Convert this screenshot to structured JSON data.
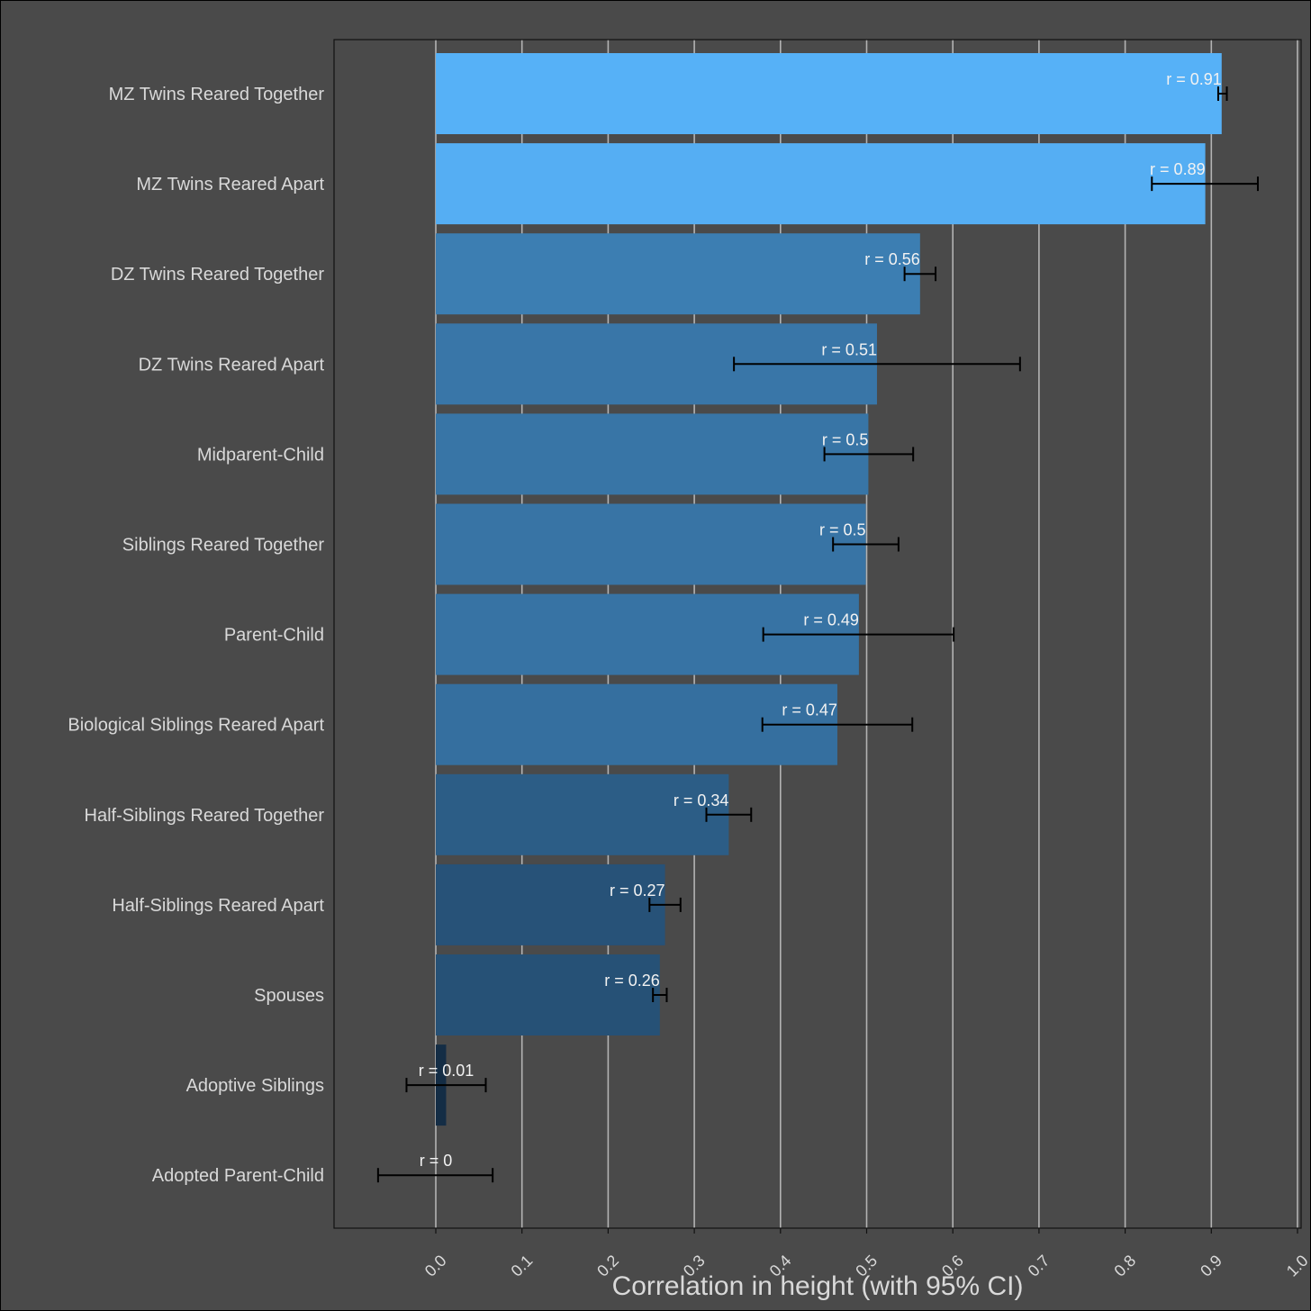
{
  "chart_data": {
    "type": "bar",
    "orientation": "horizontal",
    "title": "",
    "xlabel": "Correlation in height (with 95% CI)",
    "ylabel": "",
    "xlim": [
      -0.117,
      1.0
    ],
    "x_ticks": [
      0.0,
      0.1,
      0.2,
      0.3,
      0.4,
      0.5,
      0.6,
      0.7,
      0.8,
      0.9,
      1.0
    ],
    "x_tick_labels": [
      "0.0",
      "0.1",
      "0.2",
      "0.3",
      "0.4",
      "0.5",
      "0.6",
      "0.7",
      "0.8",
      "0.9",
      "1.0"
    ],
    "grid": "vertical",
    "categories": [
      "MZ Twins Reared Together",
      "MZ Twins Reared Apart",
      "DZ Twins Reared Together",
      "DZ Twins Reared Apart",
      "Midparent-Child",
      "Siblings Reared Together",
      "Parent-Child",
      "Biological Siblings Reared Apart",
      "Half-Siblings Reared Together",
      "Half-Siblings Reared Apart",
      "Spouses",
      "Adoptive Siblings",
      "Adopted Parent-Child"
    ],
    "values": [
      0.912,
      0.893,
      0.562,
      0.512,
      0.502,
      0.499,
      0.491,
      0.466,
      0.34,
      0.266,
      0.26,
      0.012,
      0.0
    ],
    "ci_lower": [
      0.908,
      0.831,
      0.544,
      0.346,
      0.451,
      0.461,
      0.38,
      0.379,
      0.314,
      0.248,
      0.252,
      -0.034,
      -0.067
    ],
    "ci_upper": [
      0.918,
      0.954,
      0.58,
      0.678,
      0.554,
      0.537,
      0.601,
      0.553,
      0.366,
      0.284,
      0.268,
      0.058,
      0.066
    ],
    "data_labels": [
      "r = 0.91",
      "r = 0.89",
      "r = 0.56",
      "r = 0.51",
      "r = 0.5",
      "r = 0.5",
      "r = 0.49",
      "r = 0.47",
      "r = 0.34",
      "r = 0.27",
      "r = 0.26",
      "r = 0.01",
      "r = 0"
    ],
    "colors": {
      "background": "#4a4a4a",
      "gridline": "#b3b3b3",
      "axis": "#111111",
      "text": "#d9d9d9",
      "label_text": "#f2f2f2",
      "errorbar": "#000000",
      "bar_low": "#132b43",
      "bar_high": "#56b1f7"
    }
  }
}
